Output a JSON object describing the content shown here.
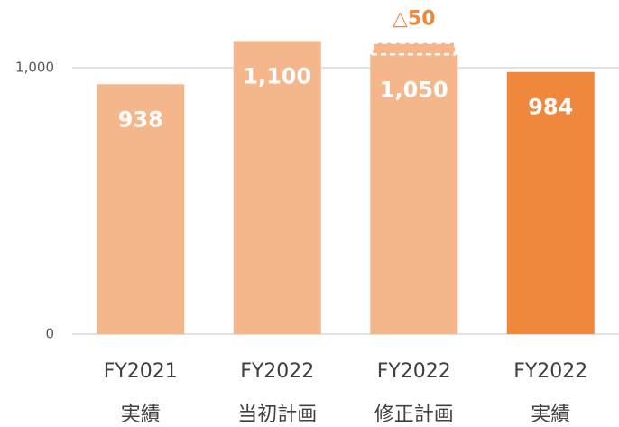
{
  "chart_data": {
    "type": "bar",
    "categories": [
      [
        "FY2021",
        "実績"
      ],
      [
        "FY2022",
        "当初計画"
      ],
      [
        "FY2022",
        "修正計画"
      ],
      [
        "FY2022",
        "実績"
      ]
    ],
    "values": [
      938,
      1100,
      1050,
      984
    ],
    "value_labels": [
      "938",
      "1,100",
      "1,050",
      "984"
    ],
    "colors": [
      "#f5b68c",
      "#f5b68c",
      "#f5b68c",
      "#ef883d"
    ],
    "ylim": [
      0,
      1000
    ],
    "yticks": [
      0,
      {
        "value": 1000,
        "label": "1,000"
      }
    ],
    "grid": true,
    "annotation": {
      "text": "△50",
      "value": -50,
      "category_index": 2,
      "color": "#ef883d"
    }
  }
}
